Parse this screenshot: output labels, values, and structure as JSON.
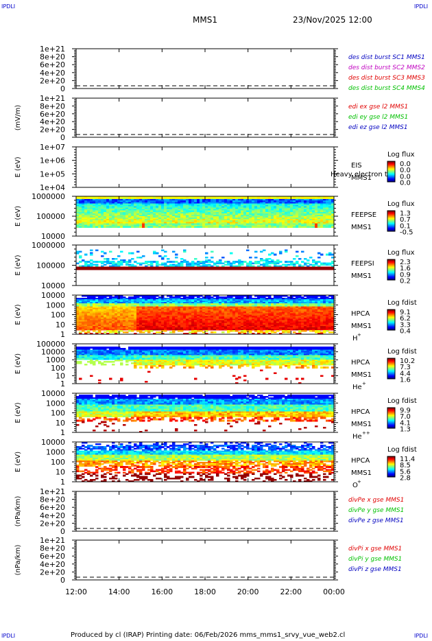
{
  "header": {
    "mission": "MMS1",
    "datetime": "23/Nov/2025 12:00"
  },
  "corners": {
    "tl": "IPDLI",
    "tr": "IPDLI",
    "bl": "IPDLI",
    "br": "IPDLI"
  },
  "footer": {
    "text": "Produced by cl (IRAP)    Printing date: 06/Feb/2026    mms_mms1_srvy_vue_web2.cl"
  },
  "colors": {
    "red": "#e00000",
    "green": "#00c000",
    "blue": "#0000c0",
    "magenta": "#c000c0",
    "orange": "#ff8000"
  },
  "chart_data": {
    "type": "heatmap",
    "x_ticks": [
      "12:00",
      "14:00",
      "16:00",
      "18:00",
      "20:00",
      "22:00",
      "00:00"
    ],
    "xlim_hours": [
      0,
      12
    ],
    "panels": [
      {
        "id": "des",
        "kind": "line",
        "ylabel": "",
        "yticks": [
          "1e+21",
          "8e+20",
          "6e+20",
          "4e+20",
          "2e+20",
          "0"
        ],
        "legend": [
          {
            "text": "des dist burst SC1 MMS1",
            "color": "blue"
          },
          {
            "text": "des dist burst SC2 MMS2",
            "color": "magenta"
          },
          {
            "text": "des dist burst SC3 MMS3",
            "color": "red"
          },
          {
            "text": "des dist burst SC4 MMS4",
            "color": "green"
          }
        ]
      },
      {
        "id": "edi",
        "kind": "line",
        "ylabel": "(mV/m)",
        "yticks": [
          "1e+21",
          "8e+20",
          "6e+20",
          "4e+20",
          "2e+20",
          "0"
        ],
        "legend": [
          {
            "text": "edi ex gse l2 MMS1",
            "color": "red"
          },
          {
            "text": "edi ey gse l2 MMS1",
            "color": "green"
          },
          {
            "text": "edi ez gse l2 MMS1",
            "color": "blue"
          }
        ]
      },
      {
        "id": "eis",
        "kind": "spec",
        "ylabel": "E (eV)",
        "yticks": [
          "1e+07",
          "1e+06",
          "1e+05",
          "1e+04"
        ],
        "name": [
          "EIS",
          "MMS1"
        ],
        "overlay": "Heavy electron to",
        "cbar_title": "Log flux",
        "cbar_ticks": [
          "0.0",
          "0.0",
          "0.0",
          "0.0"
        ],
        "empty": true
      },
      {
        "id": "feepse",
        "kind": "spec",
        "ylabel": "E (eV)",
        "yticks": [
          "1000000",
          "100000",
          "10000"
        ],
        "name": [
          "FEEPSE",
          "MMS1"
        ],
        "cbar_title": "Log flux",
        "cbar_ticks": [
          "1.3",
          "0.7",
          "0.1",
          "-0.5"
        ]
      },
      {
        "id": "feepsi",
        "kind": "spec",
        "ylabel": "E (eV)",
        "yticks": [
          "1000000",
          "100000",
          "10000"
        ],
        "name": [
          "FEEPSI",
          "MMS1"
        ],
        "cbar_title": "Log flux",
        "cbar_ticks": [
          "2.3",
          "1.6",
          "0.9",
          "0.2"
        ]
      },
      {
        "id": "hpca_h",
        "kind": "spec",
        "ylabel": "E (eV)",
        "yticks": [
          "10000",
          "1000",
          "100",
          "10",
          "1"
        ],
        "name": [
          "HPCA",
          "MMS1",
          "H",
          "+"
        ],
        "cbar_title": "Log fdist",
        "cbar_ticks": [
          "9.1",
          "6.2",
          "3.3",
          "0.4"
        ]
      },
      {
        "id": "hpca_he",
        "kind": "spec",
        "ylabel": "E (eV)",
        "yticks": [
          "100000",
          "10000",
          "1000",
          "100",
          "10",
          "1"
        ],
        "name": [
          "HPCA",
          "MMS1",
          "He",
          "+"
        ],
        "cbar_title": "Log fdist",
        "cbar_ticks": [
          "10.2",
          "7.3",
          "4.4",
          "1.6"
        ]
      },
      {
        "id": "hpca_hepp",
        "kind": "spec",
        "ylabel": "E (eV)",
        "yticks": [
          "10000",
          "1000",
          "100",
          "10",
          "1"
        ],
        "name": [
          "HPCA",
          "MMS1",
          "He",
          "++"
        ],
        "cbar_title": "Log fdist",
        "cbar_ticks": [
          "9.9",
          "7.0",
          "4.1",
          "1.3"
        ]
      },
      {
        "id": "hpca_o",
        "kind": "spec",
        "ylabel": "E (eV)",
        "yticks": [
          "10000",
          "1000",
          "100",
          "10",
          "1"
        ],
        "name": [
          "HPCA",
          "MMS1",
          "O",
          "+"
        ],
        "cbar_title": "Log fdist",
        "cbar_ticks": [
          "11.4",
          "8.5",
          "5.6",
          "2.8"
        ]
      },
      {
        "id": "divpe",
        "kind": "line",
        "ylabel": "(nPa/km)",
        "yticks": [
          "1e+21",
          "8e+20",
          "6e+20",
          "4e+20",
          "2e+20",
          "0"
        ],
        "legend": [
          {
            "text": "divPe x gse MMS1",
            "color": "red"
          },
          {
            "text": "divPe y gse MMS1",
            "color": "green"
          },
          {
            "text": "divPe z gse MMS1",
            "color": "blue"
          }
        ]
      },
      {
        "id": "divpi",
        "kind": "line",
        "ylabel": "(nPa/km)",
        "yticks": [
          "1e+21",
          "8e+20",
          "6e+20",
          "4e+20",
          "2e+20",
          "0"
        ],
        "legend": [
          {
            "text": "divPi x gse MMS1",
            "color": "red"
          },
          {
            "text": "divPi y gse MMS1",
            "color": "green"
          },
          {
            "text": "divPi z gse MMS1",
            "color": "blue"
          }
        ]
      }
    ]
  }
}
